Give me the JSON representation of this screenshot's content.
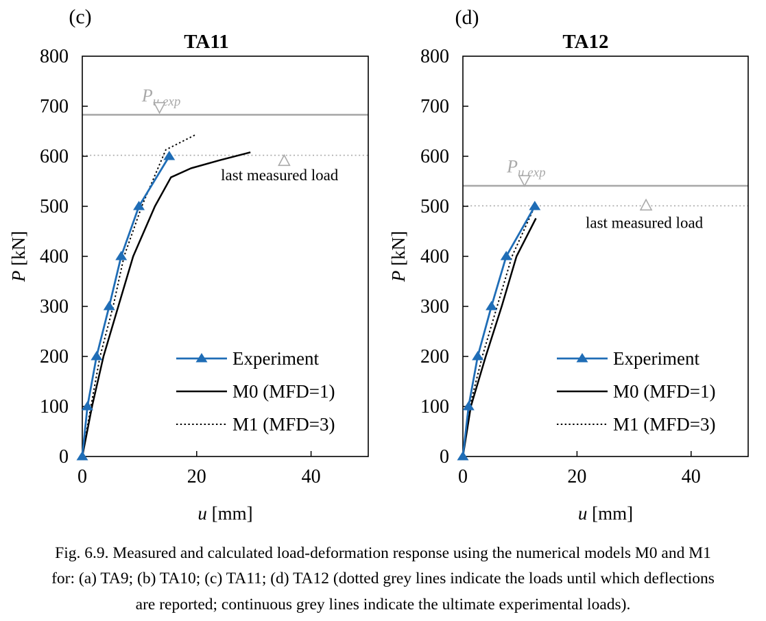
{
  "figure": {
    "caption_lines": [
      "Fig. 6.9. Measured and calculated load-deformation response using the numerical models M0 and M1",
      "for: (a) TA9; (b) TA10; (c) TA11; (d) TA12 (dotted grey lines indicate the loads until which deflections",
      "are reported; continuous grey lines indicate the ultimate experimental loads)."
    ]
  },
  "colors": {
    "experiment_blue": "#1F6DB6",
    "model_black": "#000000",
    "annotation_grey": "#A9A9A9",
    "background": "#FFFFFF"
  },
  "chart_data": [
    {
      "type": "line",
      "panel_label": "(c)",
      "title": "TA11",
      "xlabel": {
        "var": "u",
        "unit": " [mm]"
      },
      "ylabel": {
        "var": "P",
        "unit": " [kN]"
      },
      "xlim": [
        0,
        50
      ],
      "ylim": [
        0,
        800
      ],
      "xticks": [
        0,
        20,
        40
      ],
      "yticks": [
        0,
        100,
        200,
        300,
        400,
        500,
        600,
        700,
        800
      ],
      "grid": false,
      "legend_position": "inside-lower-right",
      "series": [
        {
          "name": "Experiment",
          "color": "#1F6DB6",
          "line": "solid",
          "marker": "triangle-up-filled",
          "points": [
            [
              0,
              0
            ],
            [
              0.9,
              100
            ],
            [
              2.5,
              200
            ],
            [
              4.7,
              300
            ],
            [
              6.8,
              400
            ],
            [
              9.9,
              500
            ],
            [
              15.2,
              600
            ]
          ]
        },
        {
          "name": "M0 (MFD=1)",
          "color": "#000000",
          "line": "solid",
          "marker": "none",
          "points": [
            [
              0,
              0
            ],
            [
              1.7,
              100
            ],
            [
              3.7,
              200
            ],
            [
              6.3,
              300
            ],
            [
              8.9,
              400
            ],
            [
              12.7,
              500
            ],
            [
              15.5,
              558
            ],
            [
              19,
              576
            ],
            [
              24,
              592
            ],
            [
              29.4,
              608
            ]
          ]
        },
        {
          "name": "M1 (MFD=3)",
          "color": "#000000",
          "line": "dotted",
          "marker": "none",
          "points": [
            [
              0,
              0
            ],
            [
              1.5,
              100
            ],
            [
              3.1,
              200
            ],
            [
              5.4,
              300
            ],
            [
              7.3,
              400
            ],
            [
              10.4,
              500
            ],
            [
              14.6,
              613
            ],
            [
              19.8,
              643
            ]
          ]
        }
      ],
      "annotations": {
        "ultimate_experimental_load_kN": 683,
        "last_measured_load_kN": 602,
        "pu_exp_label": {
          "base": "P",
          "sub": "u,exp",
          "x": 13.8,
          "y": 722
        },
        "pu_exp_marker": {
          "shape": "triangle-down-open",
          "x": 13.5,
          "y": 697
        },
        "last_measured_label": {
          "text": "last measured load",
          "x": 34.5,
          "y": 563
        },
        "last_measured_marker": {
          "shape": "triangle-up-open",
          "x": 35.3,
          "y": 592
        }
      }
    },
    {
      "type": "line",
      "panel_label": "(d)",
      "title": "TA12",
      "xlabel": {
        "var": "u",
        "unit": " [mm]"
      },
      "ylabel": {
        "var": "P",
        "unit": " [kN]"
      },
      "xlim": [
        0,
        50
      ],
      "ylim": [
        0,
        800
      ],
      "xticks": [
        0,
        20,
        40
      ],
      "yticks": [
        0,
        100,
        200,
        300,
        400,
        500,
        600,
        700,
        800
      ],
      "grid": false,
      "legend_position": "inside-lower-right",
      "series": [
        {
          "name": "Experiment",
          "color": "#1F6DB6",
          "line": "solid",
          "marker": "triangle-up-filled",
          "points": [
            [
              0,
              0
            ],
            [
              1.0,
              100
            ],
            [
              2.6,
              200
            ],
            [
              5.0,
              300
            ],
            [
              7.6,
              400
            ],
            [
              12.6,
              500
            ]
          ]
        },
        {
          "name": "M0 (MFD=1)",
          "color": "#000000",
          "line": "solid",
          "marker": "none",
          "points": [
            [
              0,
              0
            ],
            [
              1.4,
              100
            ],
            [
              4.0,
              200
            ],
            [
              6.8,
              300
            ],
            [
              9.4,
              400
            ],
            [
              12.8,
              476
            ]
          ]
        },
        {
          "name": "M1 (MFD=3)",
          "color": "#000000",
          "line": "dotted",
          "marker": "none",
          "points": [
            [
              0,
              0
            ],
            [
              1.2,
              100
            ],
            [
              3.4,
              200
            ],
            [
              6.0,
              300
            ],
            [
              8.6,
              400
            ],
            [
              12.2,
              490
            ]
          ]
        }
      ],
      "annotations": {
        "ultimate_experimental_load_kN": 541,
        "last_measured_load_kN": 501,
        "pu_exp_label": {
          "base": "P",
          "sub": "u,exp",
          "x": 11.1,
          "y": 580
        },
        "pu_exp_marker": {
          "shape": "triangle-down-open",
          "x": 10.8,
          "y": 551
        },
        "last_measured_label": {
          "text": "last measured load",
          "x": 31.8,
          "y": 468
        },
        "last_measured_marker": {
          "shape": "triangle-up-open",
          "x": 32.1,
          "y": 503
        }
      }
    }
  ]
}
